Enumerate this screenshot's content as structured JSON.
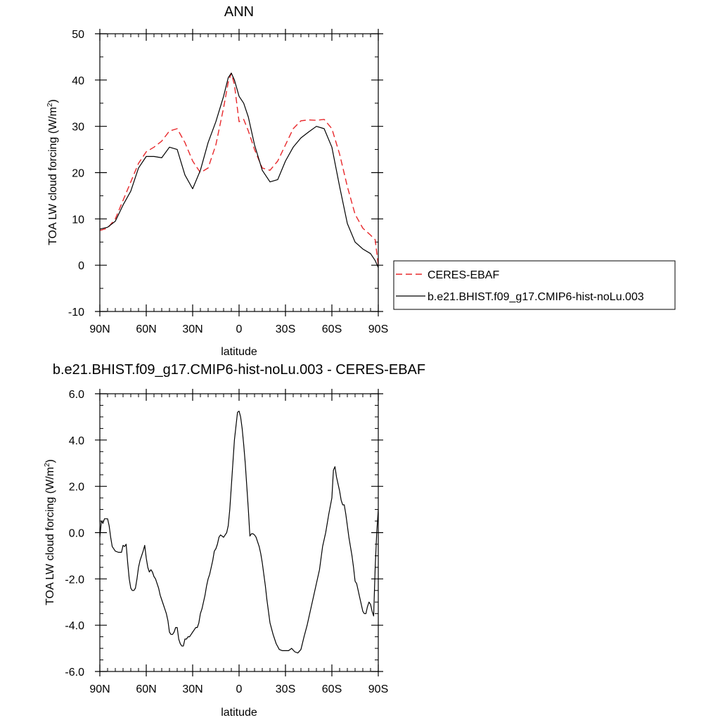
{
  "chart_data": [
    {
      "type": "line",
      "title": "ANN",
      "xlabel": "latitude",
      "ylabel": "TOA LW cloud forcing (W/m",
      "ylabel_sup": "2",
      "ylabel_close": ")",
      "xlim": [
        90,
        -90
      ],
      "ylim": [
        -10,
        50
      ],
      "xticks": [
        90,
        60,
        30,
        0,
        -30,
        -60,
        -90
      ],
      "xtick_labels": [
        "90N",
        "60N",
        "30N",
        "0",
        "30S",
        "60S",
        "90S"
      ],
      "yticks": [
        -10,
        0,
        10,
        20,
        30,
        40,
        50
      ],
      "ytick_labels": [
        "-10",
        "0",
        "10",
        "20",
        "30",
        "40",
        "50"
      ],
      "legend_position": "right",
      "series": [
        {
          "name": "CERES-EBAF",
          "color": "#e8282b",
          "style": "dashed",
          "x": [
            90,
            85,
            80,
            75,
            70,
            65,
            60,
            55,
            50,
            45,
            40,
            35,
            30,
            25,
            20,
            15,
            10,
            7,
            5,
            3,
            0,
            -3,
            -6,
            -10,
            -15,
            -20,
            -25,
            -30,
            -35,
            -40,
            -45,
            -50,
            -55,
            -60,
            -65,
            -70,
            -75,
            -80,
            -85,
            -88,
            -90
          ],
          "y": [
            7.5,
            8,
            10,
            14,
            18,
            22,
            24.5,
            25.5,
            26.8,
            29,
            29.5,
            26.5,
            22.5,
            20,
            21,
            26,
            34,
            39.5,
            41.5,
            39,
            31,
            31.5,
            29,
            25,
            21,
            20.5,
            22.5,
            26,
            29.5,
            31.2,
            31.4,
            31.3,
            31.5,
            29.5,
            24,
            17,
            11,
            8,
            6.5,
            5.5,
            0
          ]
        },
        {
          "name": "b.e21.BHIST.f09_g17.CMIP6-hist-noLu.003",
          "color": "#000000",
          "style": "solid",
          "x": [
            90,
            85,
            80,
            75,
            70,
            65,
            60,
            55,
            50,
            45,
            40,
            35,
            30,
            25,
            20,
            15,
            10,
            7,
            5,
            3,
            0,
            -3,
            -6,
            -10,
            -15,
            -20,
            -25,
            -30,
            -35,
            -40,
            -45,
            -50,
            -55,
            -60,
            -65,
            -70,
            -75,
            -80,
            -85,
            -88,
            -90
          ],
          "y": [
            7.8,
            8.2,
            9.5,
            13,
            16,
            21,
            23.5,
            23.5,
            23.2,
            25.5,
            25,
            19.5,
            16.5,
            20.5,
            26.5,
            31,
            36.5,
            40.5,
            41.5,
            40,
            36.5,
            35,
            32,
            26,
            20.5,
            18,
            18.5,
            22.5,
            25.5,
            27.5,
            28.8,
            30,
            29.5,
            25.5,
            17,
            9,
            5,
            3.5,
            2.5,
            1,
            -0.5
          ]
        }
      ]
    },
    {
      "type": "line",
      "title": "b.e21.BHIST.f09_g17.CMIP6-hist-noLu.003 - CERES-EBAF",
      "xlabel": "latitude",
      "ylabel": "TOA LW cloud forcing (W/m",
      "ylabel_sup": "2",
      "ylabel_close": ")",
      "xlim": [
        90,
        -90
      ],
      "ylim": [
        -6,
        6
      ],
      "xticks": [
        90,
        60,
        30,
        0,
        -30,
        -60,
        -90
      ],
      "xtick_labels": [
        "90N",
        "60N",
        "30N",
        "0",
        "30S",
        "60S",
        "90S"
      ],
      "yticks": [
        -6,
        -4,
        -2,
        0,
        2,
        4,
        6
      ],
      "ytick_labels": [
        "-6.0",
        "-4.0",
        "-2.0",
        "0.0",
        "2.0",
        "4.0",
        "6.0"
      ],
      "series": [
        {
          "color": "#000000",
          "style": "solid",
          "x": [
            90,
            89,
            88,
            87,
            86,
            85,
            84,
            83,
            82,
            80,
            78,
            76,
            75,
            74,
            73,
            72,
            71,
            70,
            69,
            68,
            67,
            66,
            65,
            64,
            63,
            62,
            61,
            60,
            59,
            58,
            57,
            56,
            55,
            54,
            53,
            52,
            51,
            50,
            49,
            48,
            47,
            46,
            45,
            44,
            43,
            42,
            41,
            40,
            39,
            38,
            37,
            36,
            35,
            34,
            33,
            32,
            31,
            30,
            29,
            28,
            27,
            26,
            25,
            24,
            23,
            22,
            21,
            20,
            19,
            18,
            17,
            16,
            15,
            14,
            13,
            12,
            11,
            10,
            9,
            8,
            7,
            6,
            5,
            4,
            3,
            2,
            1,
            0,
            -1,
            -2,
            -3,
            -4,
            -5,
            -6,
            -7,
            -8,
            -9,
            -10,
            -11,
            -12,
            -13,
            -14,
            -15,
            -16,
            -17,
            -18,
            -19,
            -20,
            -22,
            -24,
            -26,
            -28,
            -30,
            -32,
            -34,
            -36,
            -38,
            -40,
            -42,
            -44,
            -46,
            -48,
            -50,
            -52,
            -54,
            -56,
            -58,
            -60,
            -61,
            -62,
            -63,
            -64,
            -65,
            -66,
            -67,
            -68,
            -69,
            -70,
            -71,
            -72,
            -73,
            -74,
            -75,
            -76,
            -77,
            -78,
            -79,
            -80,
            -81,
            -82,
            -83,
            -84,
            -85,
            -86,
            -87,
            -88,
            -89,
            -90
          ],
          "y": [
            -0.2,
            0.5,
            0.4,
            0.6,
            0.6,
            0.6,
            0.3,
            -0.2,
            -0.6,
            -0.8,
            -0.85,
            -0.85,
            -0.55,
            -0.6,
            -0.5,
            -1.3,
            -2.0,
            -2.4,
            -2.5,
            -2.5,
            -2.4,
            -2.0,
            -1.5,
            -1.2,
            -1.0,
            -0.8,
            -0.55,
            -1.1,
            -1.5,
            -1.7,
            -1.6,
            -1.7,
            -1.9,
            -2.0,
            -2.2,
            -2.4,
            -2.7,
            -2.9,
            -3.1,
            -3.3,
            -3.5,
            -3.8,
            -4.3,
            -4.4,
            -4.4,
            -4.3,
            -4.1,
            -4.1,
            -4.6,
            -4.8,
            -4.9,
            -4.9,
            -4.6,
            -4.6,
            -4.5,
            -4.5,
            -4.4,
            -4.3,
            -4.2,
            -4.1,
            -4.1,
            -3.9,
            -3.5,
            -3.3,
            -3.0,
            -2.7,
            -2.3,
            -2.0,
            -1.8,
            -1.5,
            -1.2,
            -0.8,
            -0.7,
            -0.5,
            -0.2,
            -0.1,
            -0.15,
            -0.2,
            -0.1,
            0.0,
            0.3,
            1.0,
            2.0,
            3.0,
            4.0,
            4.6,
            5.2,
            5.25,
            5.0,
            4.5,
            3.8,
            3.0,
            2.0,
            1.0,
            -0.15,
            -0.05,
            -0.05,
            -0.1,
            -0.2,
            -0.4,
            -0.6,
            -0.9,
            -1.3,
            -1.8,
            -2.3,
            -2.9,
            -3.4,
            -3.9,
            -4.4,
            -4.8,
            -5.05,
            -5.1,
            -5.1,
            -5.1,
            -5.0,
            -5.15,
            -5.2,
            -5.05,
            -4.5,
            -4.0,
            -3.4,
            -2.8,
            -2.2,
            -1.6,
            -0.6,
            0.0,
            0.8,
            1.5,
            2.7,
            2.85,
            2.4,
            2.1,
            1.8,
            1.4,
            1.2,
            1.2,
            0.8,
            0.3,
            -0.2,
            -0.6,
            -1.0,
            -1.5,
            -2.1,
            -2.2,
            -2.5,
            -2.8,
            -3.1,
            -3.4,
            -3.5,
            -3.5,
            -3.2,
            -3.0,
            -3.1,
            -3.4,
            -3.6,
            -1.5,
            0.0,
            1.0
          ]
        }
      ]
    }
  ]
}
